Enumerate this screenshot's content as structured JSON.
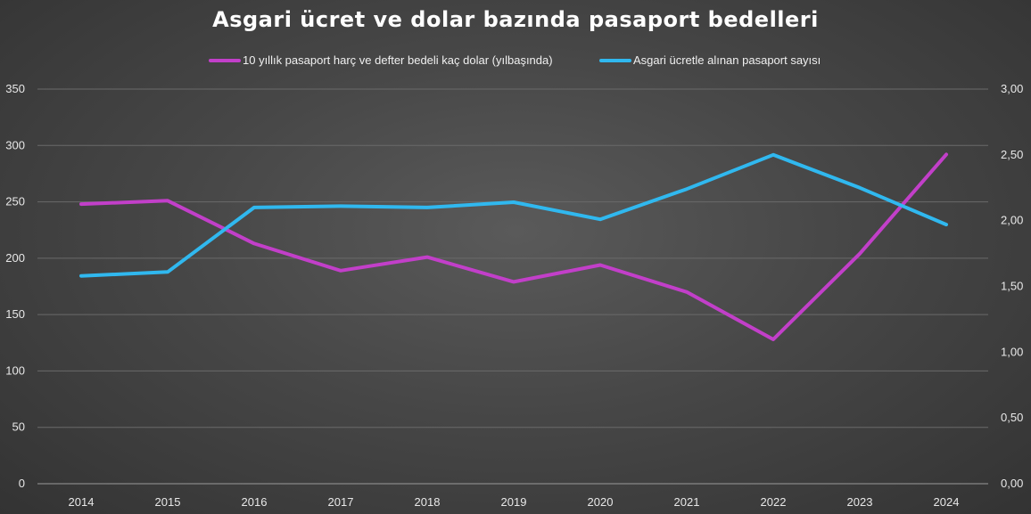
{
  "chart_data": {
    "type": "line",
    "title": "Asgari ücret ve dolar bazında pasaport bedelleri",
    "categories": [
      "2014",
      "2015",
      "2016",
      "2017",
      "2018",
      "2019",
      "2020",
      "2021",
      "2022",
      "2023",
      "2024"
    ],
    "y_left": {
      "ylim": [
        0,
        350
      ],
      "ticks": [
        0,
        50,
        100,
        150,
        200,
        250,
        300,
        350
      ],
      "tick_labels": [
        "0",
        "50",
        "100",
        "150",
        "200",
        "250",
        "300",
        "350"
      ]
    },
    "y_right": {
      "ylim": [
        0,
        3
      ],
      "ticks": [
        0,
        0.5,
        1,
        1.5,
        2,
        2.5,
        3
      ],
      "tick_labels": [
        "0,00",
        "0,50",
        "1,00",
        "1,50",
        "2,00",
        "2,50",
        "3,00"
      ]
    },
    "grid": true,
    "legend": "top",
    "series": [
      {
        "name": "10 yıllık pasaport harç ve defter bedeli kaç dolar (yılbaşında)",
        "axis": "left",
        "color": "#c23fc9",
        "values": [
          248,
          251,
          213,
          189,
          201,
          179,
          194,
          170,
          128,
          204,
          292
        ]
      },
      {
        "name": "Asgari ücretle alınan pasaport sayısı",
        "axis": "right",
        "color": "#30b8ef",
        "values": [
          1.58,
          1.61,
          2.1,
          2.11,
          2.1,
          2.14,
          2.01,
          2.24,
          2.5,
          2.25,
          1.97
        ]
      }
    ]
  }
}
